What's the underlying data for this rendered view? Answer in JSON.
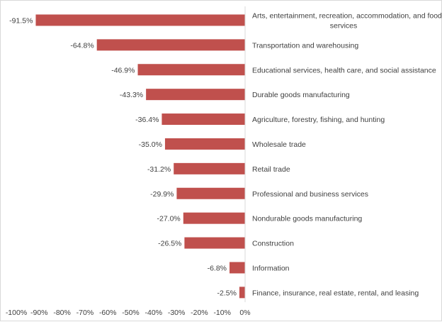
{
  "chart_data": {
    "type": "bar",
    "orientation": "horizontal",
    "categories": [
      "Arts, entertainment, recreation, accommodation, and food services",
      "Transportation and warehousing",
      "Educational services, health care, and social assistance",
      "Durable goods manufacturing",
      "Agriculture, forestry, fishing, and hunting",
      "Wholesale trade",
      "Retail trade",
      "Professional and business services",
      "Nondurable goods manufacturing",
      "Construction",
      "Information",
      "Finance, insurance, real estate, rental, and leasing"
    ],
    "category_label_lines": [
      [
        "Arts, entertainment, recreation, accommodation, and food",
        "services"
      ],
      [
        "Transportation and warehousing"
      ],
      [
        "Educational services, health care, and social assistance"
      ],
      [
        "Durable goods manufacturing"
      ],
      [
        "Agriculture, forestry, fishing, and hunting"
      ],
      [
        "Wholesale trade"
      ],
      [
        "Retail trade"
      ],
      [
        "Professional and business services"
      ],
      [
        "Nondurable goods manufacturing"
      ],
      [
        "Construction"
      ],
      [
        "Information"
      ],
      [
        "Finance, insurance, real estate, rental, and leasing"
      ]
    ],
    "values": [
      -91.5,
      -64.8,
      -46.9,
      -43.3,
      -36.4,
      -35.0,
      -31.2,
      -29.9,
      -27.0,
      -26.5,
      -6.8,
      -2.5
    ],
    "data_labels": [
      "-91.5%",
      "-64.8%",
      "-46.9%",
      "-43.3%",
      "-36.4%",
      "-35.0%",
      "-31.2%",
      "-29.9%",
      "-27.0%",
      "-26.5%",
      "-6.8%",
      "-2.5%"
    ],
    "xlim": [
      -100,
      0
    ],
    "xticks": [
      -100,
      -90,
      -80,
      -70,
      -60,
      -50,
      -40,
      -30,
      -20,
      -10,
      0
    ],
    "xtick_labels": [
      "-100%",
      "-90%",
      "-80%",
      "-70%",
      "-60%",
      "-50%",
      "-40%",
      "-30%",
      "-20%",
      "-10%",
      "0%"
    ],
    "title": "",
    "xlabel": "",
    "ylabel": "",
    "grid": false,
    "legend": "none",
    "bar_color": "#C0504D"
  }
}
